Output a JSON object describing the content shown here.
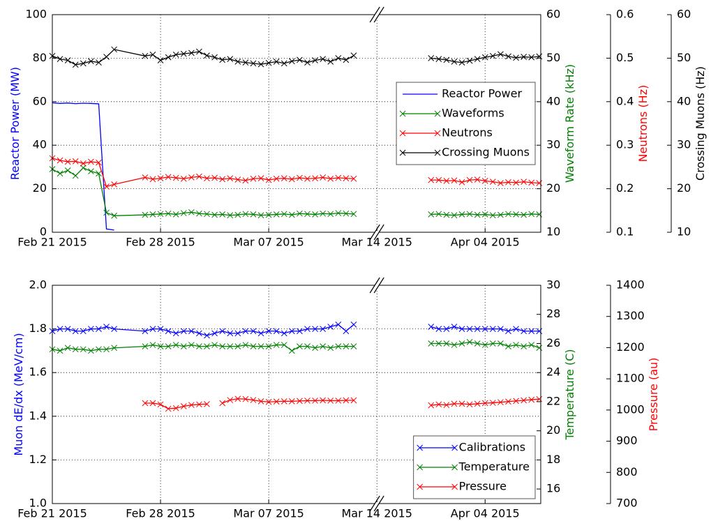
{
  "chart_data": [
    {
      "type": "line",
      "grid": true,
      "legend": "center right",
      "ylabel": "Reactor Power (MW)",
      "y2label": "Waveform Rate (kHz)",
      "y3label": "Neutrons (Hz)",
      "y4label": "Crossing Muons (Hz)",
      "xlim": [
        0,
        45.6
      ],
      "xbreak": [
        21,
        35
      ],
      "xticks": [
        {
          "value": 0,
          "label": "Feb 21 2015"
        },
        {
          "value": 7,
          "label": "Feb 28 2015"
        },
        {
          "value": 14,
          "label": "Mar 07 2015"
        },
        {
          "value": 21,
          "label": "Mar 14 2015"
        },
        {
          "value": 42,
          "label": "Apr 04 2015"
        }
      ],
      "ylim": [
        0,
        100
      ],
      "yticks": [
        0,
        20,
        40,
        60,
        80,
        100
      ],
      "y2lim": [
        10,
        60
      ],
      "y2ticks": [
        10,
        20,
        30,
        40,
        50,
        60
      ],
      "y3lim": [
        0.1,
        0.6
      ],
      "y3ticks": [
        0.1,
        0.2,
        0.3,
        0.4,
        0.5,
        0.6
      ],
      "y4lim": [
        10,
        60
      ],
      "y4ticks": [
        10,
        20,
        30,
        40,
        50,
        60
      ],
      "x": [
        0,
        0.5,
        1,
        1.5,
        2,
        2.5,
        3,
        3.5,
        4,
        6,
        6.5,
        7,
        7.5,
        8,
        8.5,
        9,
        9.5,
        10,
        10.5,
        11,
        11.5,
        12,
        12.5,
        13,
        13.5,
        14,
        14.5,
        15,
        15.5,
        16,
        16.5,
        17,
        17.5,
        18,
        18.5,
        19,
        19.5,
        38.5,
        39,
        39.5,
        40,
        40.5,
        41,
        41.5,
        42,
        42.5,
        43,
        43.5,
        44,
        44.5,
        45,
        45.5
      ],
      "series": [
        {
          "name": "Reactor Power",
          "color": "#0000ff",
          "axis": "y",
          "values": [
            59.5,
            59.2,
            59.4,
            59.1,
            59.3,
            59.2,
            59.0,
            1.5,
            1.0,
            null,
            null,
            null,
            null,
            null,
            null,
            null,
            null,
            null,
            null,
            null,
            null,
            null,
            null,
            null,
            null,
            null,
            null,
            null,
            null,
            null,
            null,
            null,
            null,
            null,
            null,
            null,
            null,
            null,
            null,
            null,
            null,
            null,
            null,
            null,
            null,
            null,
            null,
            null,
            null,
            null,
            null,
            null
          ]
        },
        {
          "name": "Waveforms",
          "color": "#008000",
          "axis": "y2",
          "marker": "x",
          "values": [
            24.5,
            23.5,
            24.2,
            23.0,
            24.8,
            24.0,
            23.5,
            14.5,
            13.8,
            14.0,
            14.1,
            14.2,
            14.3,
            14.1,
            14.4,
            14.6,
            14.3,
            14.2,
            14.0,
            14.1,
            13.9,
            14.0,
            14.2,
            14.1,
            13.9,
            14.0,
            14.1,
            14.2,
            14.0,
            14.3,
            14.2,
            14.1,
            14.3,
            14.2,
            14.4,
            14.3,
            14.2,
            14.1,
            14.2,
            14.0,
            13.9,
            14.1,
            14.2,
            14.0,
            14.1,
            13.9,
            14.0,
            14.2,
            14.1,
            14.0,
            14.2,
            14.1
          ]
        },
        {
          "name": "Neutrons",
          "color": "#ff0000",
          "axis": "y3",
          "marker": "x",
          "values": [
            0.27,
            0.265,
            0.262,
            0.263,
            0.258,
            0.262,
            0.26,
            0.205,
            0.21,
            0.226,
            0.222,
            0.224,
            0.227,
            0.225,
            0.223,
            0.226,
            0.228,
            0.224,
            0.225,
            0.222,
            0.224,
            0.221,
            0.219,
            0.223,
            0.224,
            0.22,
            0.223,
            0.224,
            0.222,
            0.225,
            0.223,
            0.224,
            0.226,
            0.223,
            0.225,
            0.224,
            0.223,
            0.22,
            0.22,
            0.218,
            0.219,
            0.215,
            0.22,
            0.221,
            0.218,
            0.216,
            0.213,
            0.215,
            0.214,
            0.216,
            0.214,
            0.213
          ]
        },
        {
          "name": "Crossing Muons",
          "color": "#000000",
          "axis": "y4",
          "marker": "x",
          "values": [
            50.5,
            49.8,
            49.5,
            48.5,
            48.8,
            49.3,
            49.0,
            50.3,
            52.0,
            50.5,
            50.8,
            49.5,
            50.2,
            50.8,
            51.0,
            51.2,
            51.5,
            50.6,
            50.2,
            49.6,
            49.8,
            49.2,
            49.0,
            48.8,
            48.6,
            48.9,
            49.2,
            48.8,
            49.3,
            49.6,
            49.0,
            49.5,
            49.8,
            49.2,
            50.0,
            49.6,
            50.6,
            50.0,
            49.8,
            49.6,
            49.2,
            49.0,
            49.4,
            49.8,
            50.2,
            50.5,
            50.9,
            50.4,
            50.1,
            50.3,
            50.2,
            50.4
          ]
        }
      ]
    },
    {
      "type": "line",
      "grid": true,
      "legend": "lower right",
      "ylabel": "Muon dE/dx (MeV/cm)",
      "y2label": "Temperature (C)",
      "y3label": "Pressure (au)",
      "xlim": [
        0,
        45.6
      ],
      "xbreak": [
        21,
        35
      ],
      "xticks": [
        {
          "value": 0,
          "label": "Feb 21 2015"
        },
        {
          "value": 7,
          "label": "Feb 28 2015"
        },
        {
          "value": 14,
          "label": "Mar 07 2015"
        },
        {
          "value": 21,
          "label": "Mar 14 2015"
        },
        {
          "value": 42,
          "label": "Apr 04 2015"
        }
      ],
      "ylim": [
        1,
        2
      ],
      "yticks": [
        {
          "value": 1,
          "label": "1.0"
        },
        1.2,
        1.4,
        1.6,
        1.8,
        {
          "value": 2,
          "label": "2.0"
        }
      ],
      "y2lim": [
        15,
        30
      ],
      "y2ticks": [
        16,
        18,
        20,
        22,
        24,
        26,
        28,
        30
      ],
      "y3lim": [
        700,
        1400
      ],
      "y3ticks": [
        700,
        800,
        900,
        1000,
        1100,
        1200,
        1300,
        1400
      ],
      "x": [
        0,
        0.5,
        1,
        1.5,
        2,
        2.5,
        3,
        3.5,
        4,
        6,
        6.5,
        7,
        7.5,
        8,
        8.5,
        9,
        9.5,
        10,
        10.5,
        11,
        11.5,
        12,
        12.5,
        13,
        13.5,
        14,
        14.5,
        15,
        15.5,
        16,
        16.5,
        17,
        17.5,
        18,
        18.5,
        19,
        19.5,
        38.5,
        39,
        39.5,
        40,
        40.5,
        41,
        41.5,
        42,
        42.5,
        43,
        43.5,
        44,
        44.5,
        45,
        45.5
      ],
      "series": [
        {
          "name": "Calibrations",
          "color": "#0000ff",
          "axis": "y",
          "marker": "x",
          "values": [
            1.79,
            1.8,
            1.8,
            1.79,
            1.79,
            1.8,
            1.8,
            1.81,
            1.8,
            1.79,
            1.8,
            1.8,
            1.79,
            1.78,
            1.79,
            1.79,
            1.78,
            1.77,
            1.78,
            1.79,
            1.78,
            1.78,
            1.79,
            1.79,
            1.78,
            1.79,
            1.79,
            1.78,
            1.79,
            1.79,
            1.8,
            1.8,
            1.8,
            1.81,
            1.82,
            1.79,
            1.82,
            1.81,
            1.8,
            1.8,
            1.81,
            1.8,
            1.8,
            1.8,
            1.8,
            1.8,
            1.8,
            1.79,
            1.8,
            1.79,
            1.79,
            1.79
          ]
        },
        {
          "name": "Temperature",
          "color": "#008000",
          "axis": "y2",
          "marker": "x",
          "values": [
            25.6,
            25.5,
            25.7,
            25.6,
            25.6,
            25.5,
            25.6,
            25.6,
            25.7,
            25.8,
            25.9,
            25.8,
            25.8,
            25.9,
            25.8,
            25.9,
            25.8,
            25.8,
            25.9,
            25.8,
            25.8,
            25.8,
            25.9,
            25.8,
            25.8,
            25.8,
            25.9,
            25.9,
            25.5,
            25.8,
            25.8,
            25.7,
            25.8,
            25.7,
            25.8,
            25.8,
            25.8,
            26.0,
            26.0,
            26.0,
            25.9,
            26.0,
            26.1,
            26.0,
            25.9,
            26.0,
            26.0,
            25.8,
            25.9,
            25.8,
            25.9,
            25.7
          ]
        },
        {
          "name": "Pressure",
          "color": "#ff0000",
          "axis": "y3",
          "marker": "x",
          "values": [
            null,
            null,
            null,
            null,
            null,
            null,
            null,
            null,
            null,
            1022,
            1022,
            1018,
            1004,
            1006,
            1012,
            1016,
            1018,
            1019,
            null,
            1022,
            1032,
            1036,
            1035,
            1032,
            1028,
            1026,
            1027,
            1028,
            1028,
            1029,
            1030,
            1030,
            1031,
            1030,
            1030,
            1031,
            1031,
            1015,
            1018,
            1016,
            1020,
            1020,
            1018,
            1020,
            1022,
            1023,
            1025,
            1027,
            1029,
            1031,
            1033,
            1035
          ]
        }
      ]
    }
  ]
}
